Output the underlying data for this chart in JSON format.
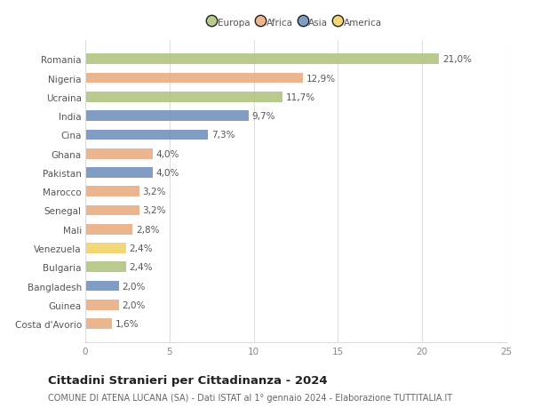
{
  "countries": [
    "Romania",
    "Nigeria",
    "Ucraina",
    "India",
    "Cina",
    "Ghana",
    "Pakistan",
    "Marocco",
    "Senegal",
    "Mali",
    "Venezuela",
    "Bulgaria",
    "Bangladesh",
    "Guinea",
    "Costa d'Avorio"
  ],
  "values": [
    21.0,
    12.9,
    11.7,
    9.7,
    7.3,
    4.0,
    4.0,
    3.2,
    3.2,
    2.8,
    2.4,
    2.4,
    2.0,
    2.0,
    1.6
  ],
  "labels": [
    "21,0%",
    "12,9%",
    "11,7%",
    "9,7%",
    "7,3%",
    "4,0%",
    "4,0%",
    "3,2%",
    "3,2%",
    "2,8%",
    "2,4%",
    "2,4%",
    "2,0%",
    "2,0%",
    "1,6%"
  ],
  "continents": [
    "Europa",
    "Africa",
    "Europa",
    "Asia",
    "Asia",
    "Africa",
    "Asia",
    "Africa",
    "Africa",
    "Africa",
    "America",
    "Europa",
    "Asia",
    "Africa",
    "Africa"
  ],
  "continent_colors": {
    "Europa": "#adc17a",
    "Africa": "#e8a87c",
    "Asia": "#6b8cba",
    "America": "#f0d060"
  },
  "legend_order": [
    "Europa",
    "Africa",
    "Asia",
    "America"
  ],
  "legend_colors": [
    "#adc17a",
    "#e8a87c",
    "#6b8cba",
    "#f0d060"
  ],
  "xlim": [
    0,
    25
  ],
  "xticks": [
    0,
    5,
    10,
    15,
    20,
    25
  ],
  "title": "Cittadini Stranieri per Cittadinanza - 2024",
  "subtitle": "COMUNE DI ATENA LUCANA (SA) - Dati ISTAT al 1° gennaio 2024 - Elaborazione TUTTITALIA.IT",
  "bg_color": "#ffffff",
  "grid_color": "#dddddd",
  "bar_height": 0.55,
  "label_fontsize": 7.5,
  "tick_fontsize": 7.5,
  "title_fontsize": 9.5,
  "subtitle_fontsize": 7.0
}
